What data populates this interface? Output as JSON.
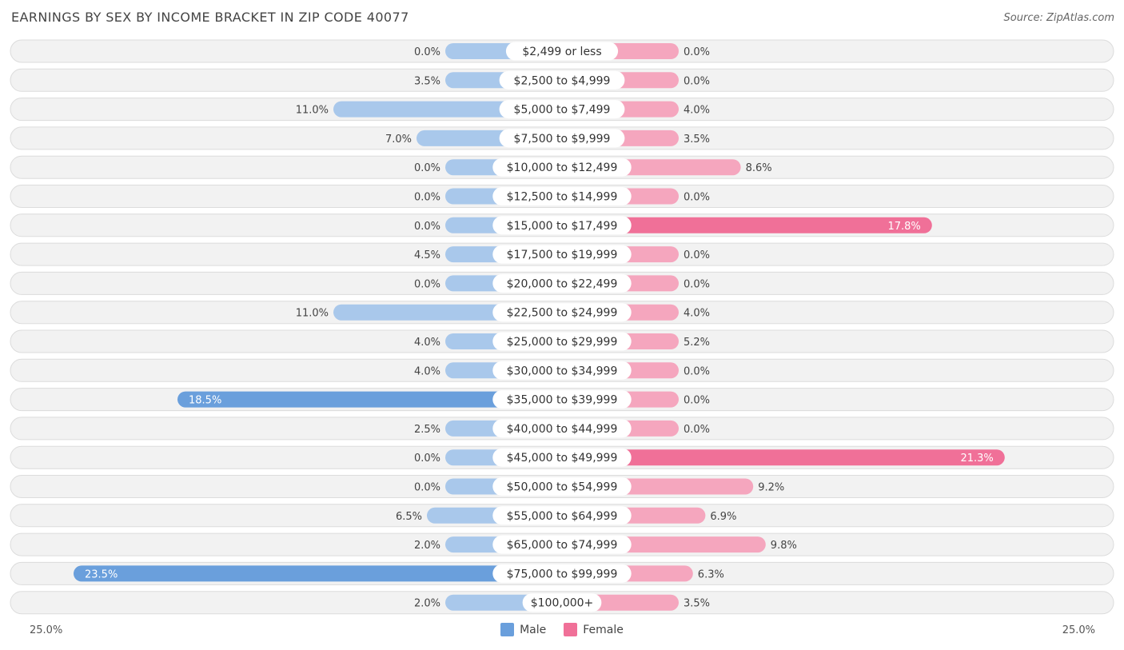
{
  "header": {
    "title": "EARNINGS BY SEX BY INCOME BRACKET IN ZIP CODE 40077",
    "source": "Source: ZipAtlas.com"
  },
  "colors": {
    "male_dark": "#6a9fdc",
    "male_light": "#a9c8eb",
    "female_dark": "#f07098",
    "female_light": "#f5a6be",
    "row_bg": "#f2f2f2",
    "row_border": "#dcdcdc"
  },
  "chart_data": {
    "type": "bar",
    "orientation": "horizontal-diverging",
    "title": "EARNINGS BY SEX BY INCOME BRACKET IN ZIP CODE 40077",
    "categories": [
      "$2,499 or less",
      "$2,500 to $4,999",
      "$5,000 to $7,499",
      "$7,500 to $9,999",
      "$10,000 to $12,499",
      "$12,500 to $14,999",
      "$15,000 to $17,499",
      "$17,500 to $19,999",
      "$20,000 to $22,499",
      "$22,500 to $24,999",
      "$25,000 to $29,999",
      "$30,000 to $34,999",
      "$35,000 to $39,999",
      "$40,000 to $44,999",
      "$45,000 to $49,999",
      "$50,000 to $54,999",
      "$55,000 to $64,999",
      "$65,000 to $74,999",
      "$75,000 to $99,999",
      "$100,000+"
    ],
    "series": [
      {
        "name": "Male",
        "values": [
          0.0,
          3.5,
          11.0,
          7.0,
          0.0,
          0.0,
          0.0,
          4.5,
          0.0,
          11.0,
          4.0,
          4.0,
          18.5,
          2.5,
          0.0,
          0.0,
          6.5,
          2.0,
          23.5,
          2.0
        ],
        "labels": [
          "0.0%",
          "3.5%",
          "11.0%",
          "7.0%",
          "0.0%",
          "0.0%",
          "0.0%",
          "4.5%",
          "0.0%",
          "11.0%",
          "4.0%",
          "4.0%",
          "18.5%",
          "2.5%",
          "0.0%",
          "0.0%",
          "6.5%",
          "2.0%",
          "23.5%",
          "2.0%"
        ]
      },
      {
        "name": "Female",
        "values": [
          0.0,
          0.0,
          4.0,
          3.5,
          8.6,
          0.0,
          17.8,
          0.0,
          0.0,
          4.0,
          5.2,
          0.0,
          0.0,
          0.0,
          21.3,
          9.2,
          6.9,
          9.8,
          6.3,
          3.5
        ],
        "labels": [
          "0.0%",
          "0.0%",
          "4.0%",
          "3.5%",
          "8.6%",
          "0.0%",
          "17.8%",
          "0.0%",
          "0.0%",
          "4.0%",
          "5.2%",
          "0.0%",
          "0.0%",
          "0.0%",
          "21.3%",
          "9.2%",
          "6.9%",
          "9.8%",
          "6.3%",
          "3.5%"
        ]
      }
    ],
    "xlim": [
      -25,
      25
    ],
    "axis_labels": {
      "left": "25.0%",
      "right": "25.0%"
    },
    "legend": {
      "position": "bottom-center",
      "items": [
        "Male",
        "Female"
      ]
    }
  }
}
